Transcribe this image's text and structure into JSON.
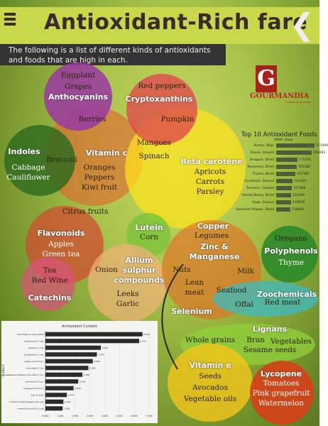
{
  "header": {
    "title": "Antioxidant-Rich fare",
    "intro_line1": "The following is a list of different kinds of antioxidants",
    "intro_line2": "and foods that are high in each."
  },
  "icons": {
    "menu": "menu-icon",
    "back": "chevron-left-icon"
  },
  "logo": {
    "letter": "G",
    "name": "GOURMANDIA",
    "sub": "Cucina & Cuisine"
  },
  "colors": {
    "anthocyanins": "#9b3aa0",
    "cryptoxanthins": "#e0484a",
    "indoles": "#2d6a1e",
    "vitamin_c": "#e85a2a",
    "beta_carotene": "#ffe21a",
    "flavonoids": "#d24a30",
    "lutein": "#7cc43a",
    "copper": "#e7671f",
    "allium": "#f3b07c",
    "catechins": "#d9527c",
    "zoochemicals": "#44b8b8",
    "polyphenols": "#2f8a2a",
    "lignans": "#8fcf3a",
    "vitamin_e": "#f6c61a",
    "lycopene": "#d6401a"
  },
  "groups": {
    "anthocyanins": {
      "title": "Anthocyanins",
      "foods": [
        "Eggplant",
        "Grapes",
        "Berries"
      ]
    },
    "cryptoxanthins": {
      "title": "Cryptoxanthins",
      "foods": [
        "Red peppers",
        "Pumpkin"
      ]
    },
    "indoles": {
      "title": "Indoles",
      "foods": [
        "Cabbage",
        "Cauliflower",
        "Broccoli"
      ]
    },
    "vitamin_c": {
      "title": "Vitamin c",
      "foods": [
        "Oranges",
        "Peppers",
        "Kiwi fruit",
        "Citrus fruits"
      ]
    },
    "beta_carotene": {
      "title": "Beta carotene",
      "foods": [
        "Apricots",
        "Carrots",
        "Parsley",
        "Mangoes",
        "Spinach"
      ]
    },
    "flavonoids": {
      "title": "Flavonoids",
      "foods": [
        "Apples",
        "Green tea"
      ]
    },
    "lutein": {
      "title": "Lutein",
      "foods": [
        "Corn"
      ]
    },
    "copper": {
      "title": "Copper",
      "foods": [
        "Legumes"
      ]
    },
    "zinc": {
      "title": "Zinc &",
      "title2": "Manganese",
      "foods": [
        "Nuts",
        "Milk",
        "Lean",
        "meat"
      ]
    },
    "allium": {
      "title": "Allium",
      "title2": "sulphur",
      "title3": "compounds",
      "foods": [
        "Onion",
        "Leeks",
        "Garlic"
      ]
    },
    "catechins": {
      "title": "Catechins",
      "foods": [
        "Tea",
        "Red Wine"
      ]
    },
    "selenium": {
      "title": "Selenium",
      "foods": [
        "Seafood",
        "Offal"
      ]
    },
    "zoochemicals": {
      "title": "Zoochemicals",
      "foods": [
        "Red meat"
      ]
    },
    "polyphenols": {
      "title": "Polyphenols",
      "foods": [
        "Oregano",
        "Thyme"
      ]
    },
    "lignans": {
      "title": "Lignans",
      "foods": [
        "Bran",
        "Vegetables",
        "Sesame seeds",
        "Whole grains"
      ]
    },
    "vitamin_e": {
      "title": "Vitamin e",
      "foods": [
        "Seeds",
        "Avocados",
        "Vegetable oils"
      ]
    },
    "lycopene": {
      "title": "Lycopene",
      "foods": [
        "Tomatoes",
        "Pink grapefruit",
        "Watermelon"
      ]
    }
  },
  "top10": {
    "title": "Top 10 Antioxidant Foods",
    "unit": "ORAC value",
    "rows": [
      {
        "name": "Sumac, Bran",
        "value": "312400",
        "n": 312400
      },
      {
        "name": "Cloves, Ground",
        "value": "290283",
        "n": 290283
      },
      {
        "name": "Oregano, Dried",
        "value": "175295",
        "n": 175295
      },
      {
        "name": "Rosemary, Dried",
        "value": "165280",
        "n": 165280
      },
      {
        "name": "Thyme, Dried",
        "value": "157380",
        "n": 157380
      },
      {
        "name": "Cinnamon, Ground",
        "value": "131420",
        "n": 131420
      },
      {
        "name": "Turmeric, Ground",
        "value": "127068",
        "n": 127068
      },
      {
        "name": "Vanilla Beans, Dried",
        "value": "122400",
        "n": 122400
      },
      {
        "name": "Sage, Ground",
        "value": "119929",
        "n": 119929
      },
      {
        "name": "Szechuan Pepper, Dried",
        "value": "118400",
        "n": 118400
      }
    ]
  },
  "chart_data": {
    "type": "bar",
    "orientation": "horizontal",
    "title": "Antioxidant Content",
    "ylabel": "Product",
    "xlabel": "",
    "xlim": [
      0,
      7
    ],
    "x_ticks": [
      "0.000",
      "1.000",
      "2.000",
      "3.000",
      "4.000",
      "5.000",
      "6.000",
      "7.000"
    ],
    "categories": [
      "artichokes (1 cup hearts)",
      "cranberries (1 cup)",
      "grapes (1 cup)",
      "blueberries (1 cup)",
      "green juice (8 oz.)",
      "chocolate (1 oz.)",
      "unsweetened baking chocolate (1 oz.)",
      "red wine (1.5 oz.)",
      "orange juice (8 oz.)",
      "kiwi (1 fruit)",
      "cooked red bell pepper (1/2 cup)",
      "cooked broccoli (1/2 cup)"
    ],
    "values": [
      6.552,
      6.331,
      3.74,
      3.474,
      3.2,
      2.9,
      2.5,
      2.214,
      1.9,
      1.447,
      1.215,
      1.16
    ],
    "value_labels": [
      "6.552",
      "6.331",
      "3.740",
      "3.474",
      "3.200",
      "2.900",
      "2.500",
      "2.214",
      "1.900",
      "1.447",
      "1.215",
      "1.160"
    ]
  }
}
